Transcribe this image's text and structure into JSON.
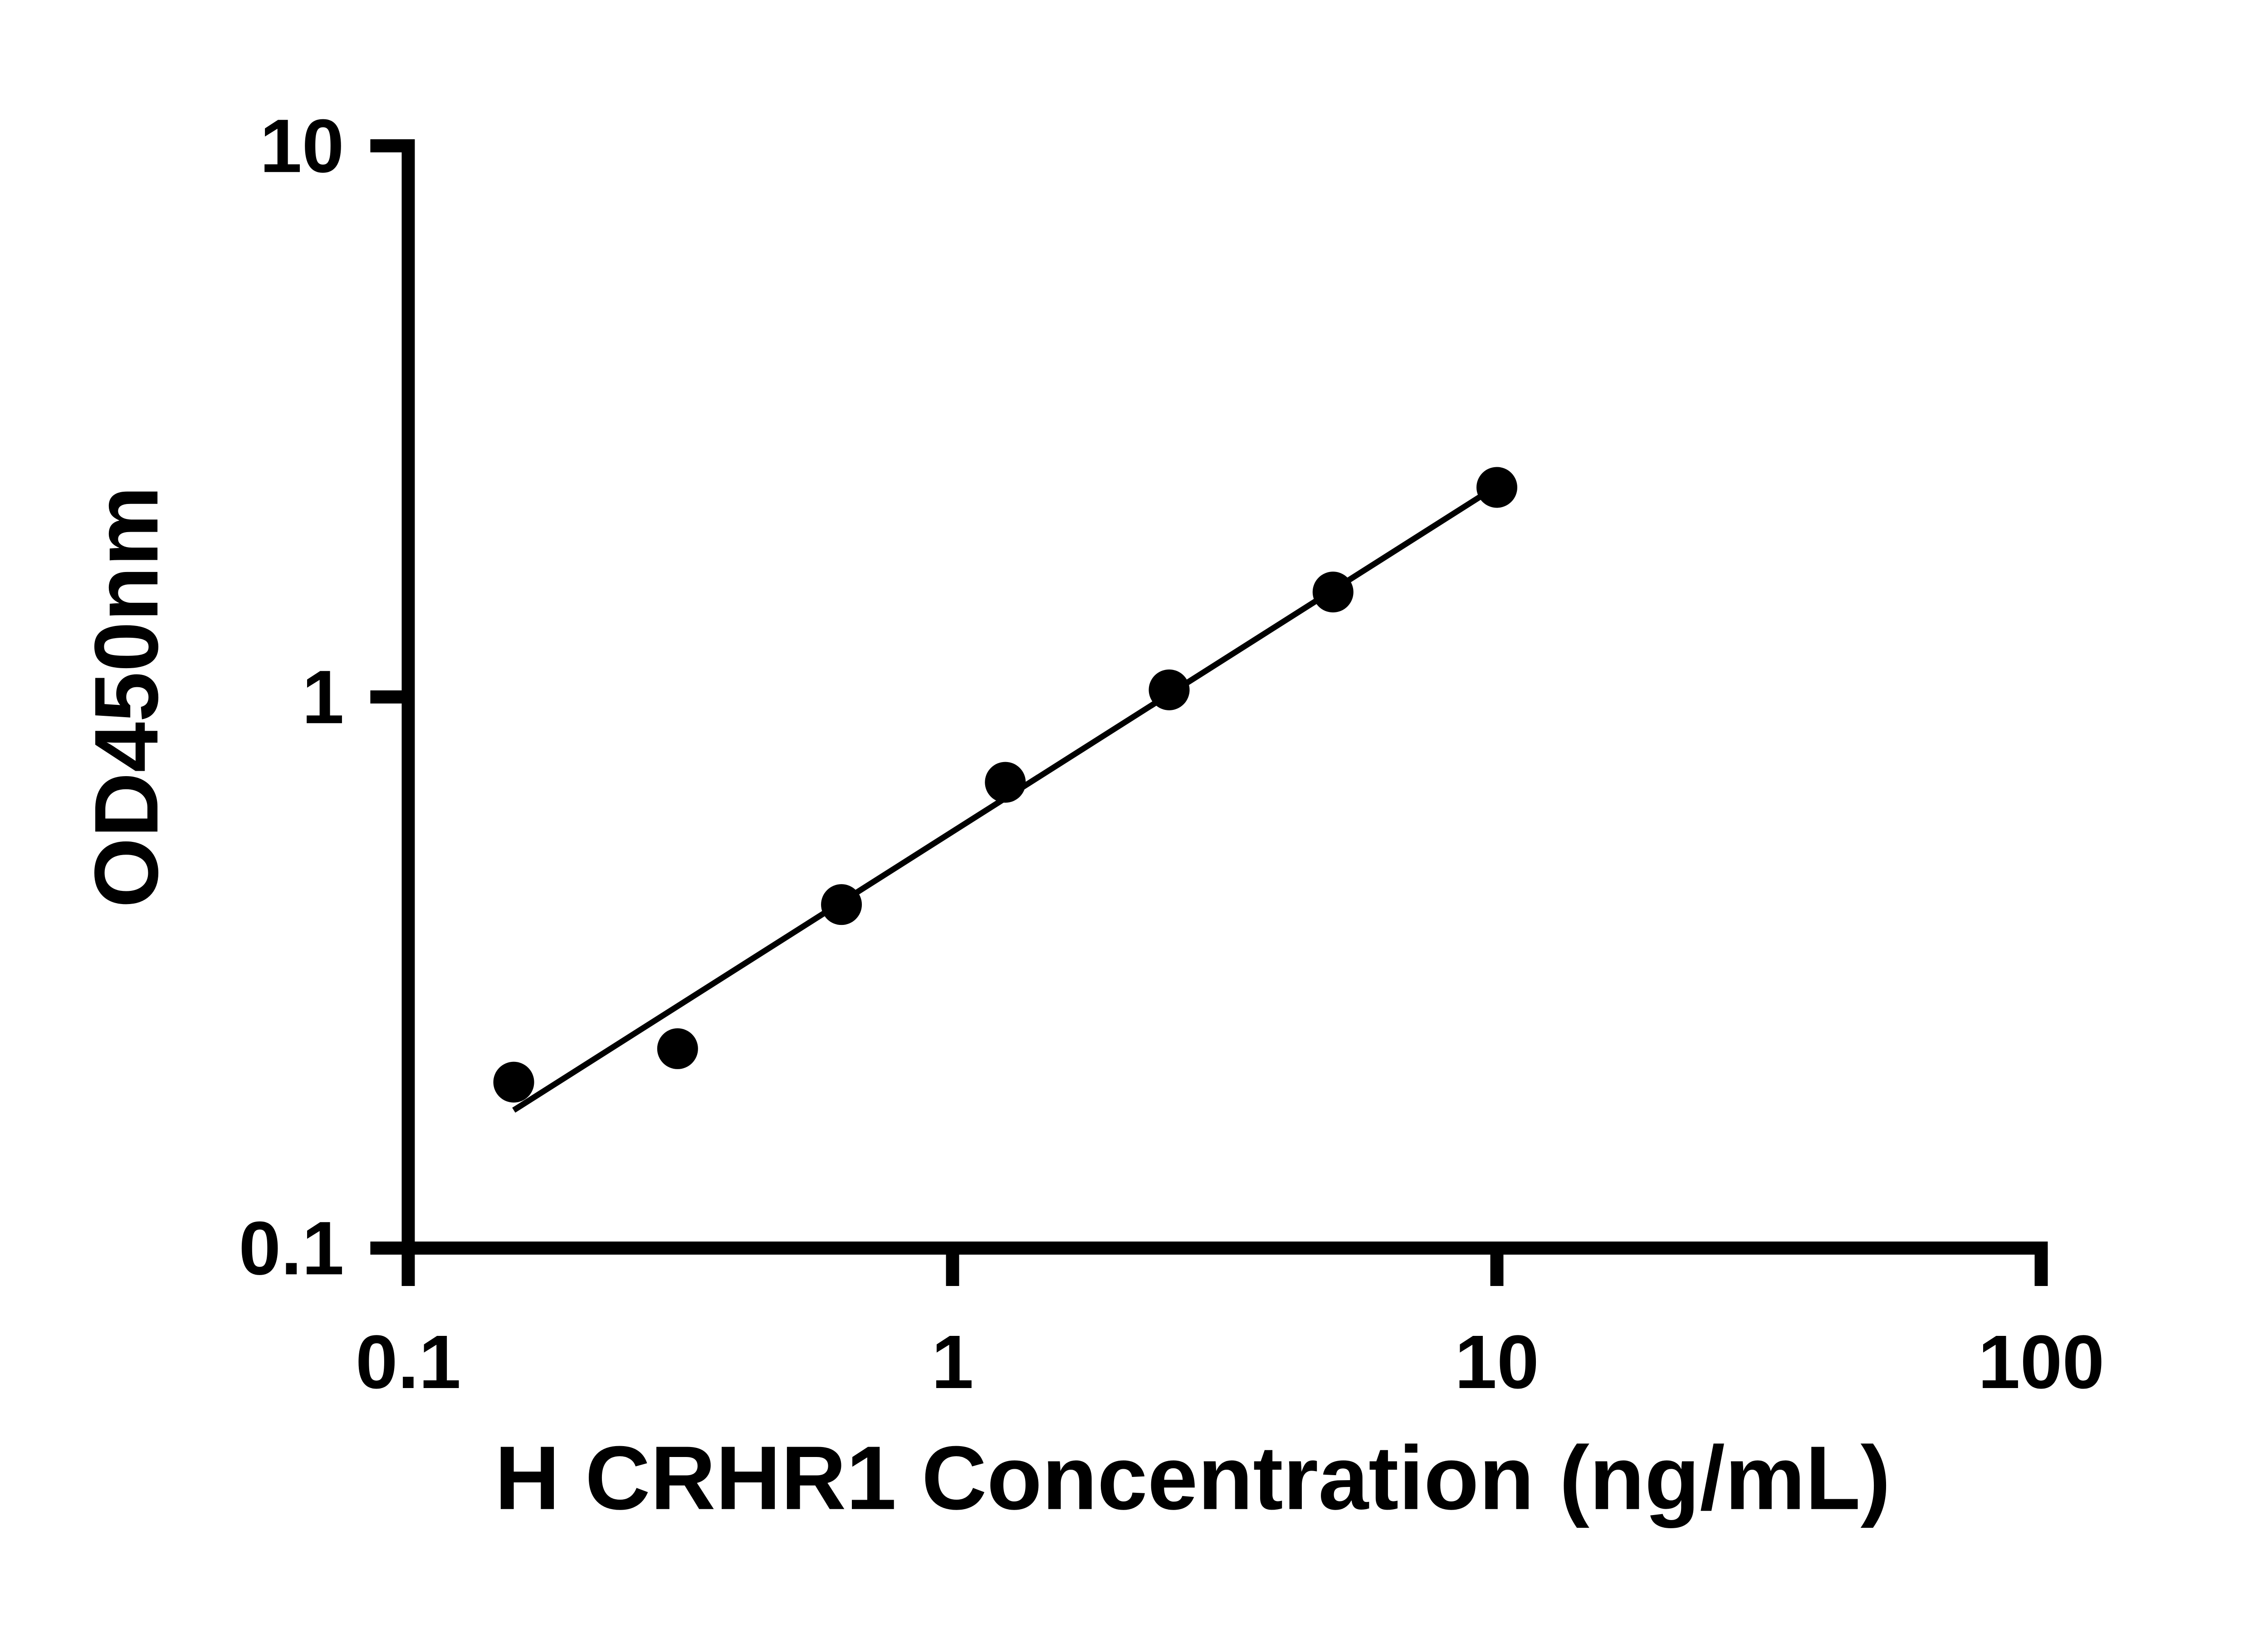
{
  "chart_data": {
    "type": "scatter",
    "title": "",
    "xlabel": "H CRHR1 Concentration (ng/mL)",
    "ylabel": "OD450nm",
    "xscale": "log",
    "yscale": "log",
    "xlim": [
      0.1,
      100
    ],
    "ylim": [
      0.1,
      10
    ],
    "grid": false,
    "legend": "none",
    "marker_color": "#000000",
    "line_color": "#000000",
    "x_ticks": [
      {
        "value": 0.1,
        "label": "0.1"
      },
      {
        "value": 1,
        "label": "1"
      },
      {
        "value": 10,
        "label": "10"
      },
      {
        "value": 100,
        "label": "100"
      }
    ],
    "y_ticks": [
      {
        "value": 0.1,
        "label": "0.1"
      },
      {
        "value": 1,
        "label": "1"
      },
      {
        "value": 10,
        "label": "10"
      }
    ],
    "points": [
      {
        "x": 0.15625,
        "y": 0.2
      },
      {
        "x": 0.3125,
        "y": 0.23
      },
      {
        "x": 0.625,
        "y": 0.42
      },
      {
        "x": 1.25,
        "y": 0.7
      },
      {
        "x": 2.5,
        "y": 1.03
      },
      {
        "x": 5,
        "y": 1.55
      },
      {
        "x": 10,
        "y": 2.4
      }
    ],
    "trend_line": true
  }
}
